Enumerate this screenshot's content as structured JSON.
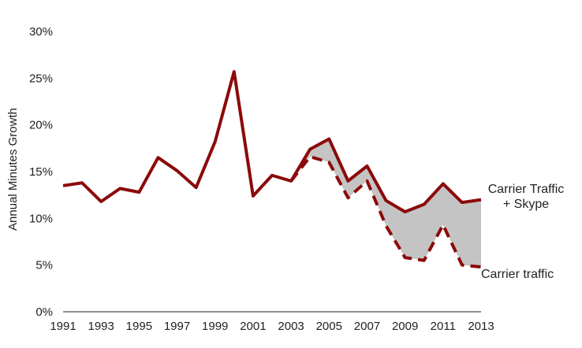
{
  "chart_data": {
    "type": "line",
    "title": "",
    "xlabel": "",
    "ylabel": "Annual Minutes Growth",
    "ylim": [
      0,
      30
    ],
    "xlim": [
      1991,
      2013
    ],
    "grid": false,
    "x": [
      1991,
      1992,
      1993,
      1994,
      1995,
      1996,
      1997,
      1998,
      1999,
      2000,
      2001,
      2002,
      2003,
      2004,
      2005,
      2006,
      2007,
      2008,
      2009,
      2010,
      2011,
      2012,
      2013
    ],
    "x_ticks": [
      "1991",
      "1993",
      "1995",
      "1997",
      "1999",
      "2001",
      "2003",
      "2005",
      "2007",
      "2009",
      "2011",
      "2013"
    ],
    "y_ticks": [
      "0%",
      "5%",
      "10%",
      "15%",
      "20%",
      "25%",
      "30%"
    ],
    "series": [
      {
        "name": "Carrier Traffic + Skype",
        "style": "solid",
        "color": "#8b0a0a",
        "x": [
          1991,
          1992,
          1993,
          1994,
          1995,
          1996,
          1997,
          1998,
          1999,
          2000,
          2001,
          2002,
          2003,
          2004,
          2005,
          2006,
          2007,
          2008,
          2009,
          2010,
          2011,
          2012,
          2013
        ],
        "values": [
          13.5,
          13.8,
          11.8,
          13.2,
          12.8,
          16.5,
          15.1,
          13.3,
          18.2,
          25.7,
          12.4,
          14.6,
          14.0,
          17.4,
          18.5,
          14.0,
          15.6,
          11.9,
          10.7,
          11.5,
          13.7,
          11.7,
          12.0
        ]
      },
      {
        "name": "Carrier traffic",
        "style": "dashed",
        "color": "#8b0a0a",
        "x": [
          2003,
          2004,
          2005,
          2006,
          2007,
          2008,
          2009,
          2010,
          2011,
          2012,
          2013
        ],
        "values": [
          14.0,
          16.6,
          16.0,
          12.2,
          14.0,
          9.2,
          5.8,
          5.5,
          9.3,
          5.0,
          4.8
        ]
      }
    ],
    "fill_between_color": "#c4c4c4",
    "series_labels": {
      "combined": [
        "Carrier Traffic",
        "+ Skype"
      ],
      "carrier": "Carrier traffic"
    }
  }
}
